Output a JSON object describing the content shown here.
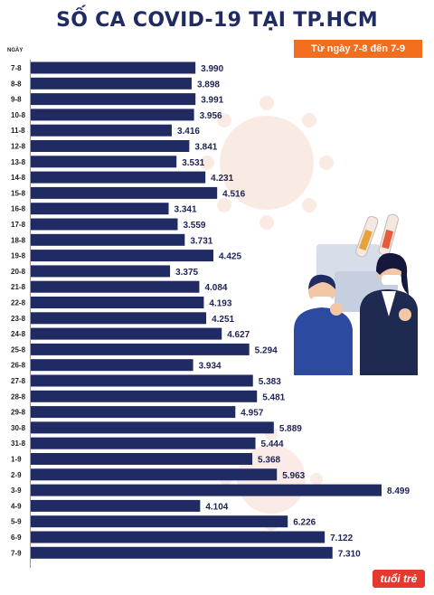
{
  "header": {
    "title": "SỐ CA COVID-19 TẠI TP.HCM",
    "date_range": "Từ ngày 7-8 đến 7-9",
    "unit_label": "NGÀY"
  },
  "brand": {
    "logo_text": "tuổi trẻ"
  },
  "colors": {
    "bar": "#202a63",
    "accent": "#f26d1d",
    "title": "#202a63"
  },
  "chart_data": {
    "type": "bar",
    "orientation": "horizontal",
    "categories": [
      "7-8",
      "8-8",
      "9-8",
      "10-8",
      "11-8",
      "12-8",
      "13-8",
      "14-8",
      "15-8",
      "16-8",
      "17-8",
      "18-8",
      "19-8",
      "20-8",
      "21-8",
      "22-8",
      "23-8",
      "24-8",
      "25-8",
      "26-8",
      "27-8",
      "28-8",
      "29-8",
      "30-8",
      "31-8",
      "1-9",
      "2-9",
      "3-9",
      "4-9",
      "5-9",
      "6-9",
      "7-9"
    ],
    "values": [
      3990,
      3898,
      3991,
      3956,
      3416,
      3841,
      3531,
      4231,
      4516,
      3341,
      3559,
      3731,
      4425,
      3375,
      4084,
      4193,
      4251,
      4627,
      5294,
      3934,
      5383,
      5481,
      4957,
      5889,
      5444,
      5368,
      5963,
      8499,
      4104,
      6226,
      7122,
      7310
    ],
    "value_labels": [
      "3.990",
      "3.898",
      "3.991",
      "3.956",
      "3.416",
      "3.841",
      "3.531",
      "4.231",
      "4.516",
      "3.341",
      "3.559",
      "3.731",
      "4.425",
      "3.375",
      "4.084",
      "4.193",
      "4.251",
      "4.627",
      "5.294",
      "3.934",
      "5.383",
      "5.481",
      "4.957",
      "5.889",
      "5.444",
      "5.368",
      "5.963",
      "8.499",
      "4.104",
      "6.226",
      "7.122",
      "7.310"
    ],
    "title": "SỐ CA COVID-19 TẠI TP.HCM",
    "xlabel": "",
    "ylabel": "NGÀY",
    "grid": false,
    "legend": "none"
  }
}
